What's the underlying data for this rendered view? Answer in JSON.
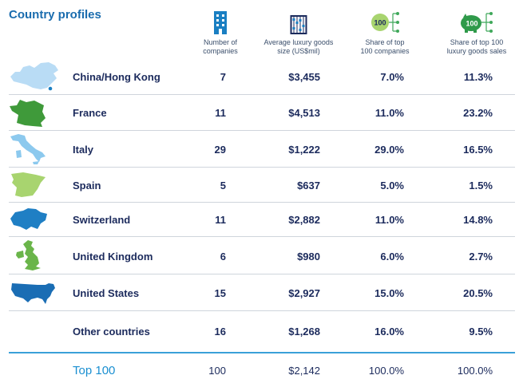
{
  "title": "Country profiles",
  "headers": {
    "num_companies": [
      "Number of",
      "companies"
    ],
    "avg_size": [
      "Average luxury goods",
      "size (US$mil)"
    ],
    "share_companies": [
      "Share of top",
      "100 companies"
    ],
    "share_sales": [
      "Share of top 100",
      "luxury goods sales"
    ],
    "badge_companies": "100",
    "badge_sales": "100"
  },
  "icons": {
    "num_companies": "building-icon",
    "avg_size": "abacus-icon",
    "share_companies": "coin-network-icon",
    "share_sales": "piggy-bank-network-icon"
  },
  "colors": {
    "title": "#1a6cae",
    "china": "#b9dcf5",
    "france": "#3f9a3a",
    "italy": "#8cc9ee",
    "spain": "#a8d46f",
    "switzerland": "#1f7fc4",
    "uk": "#6ab54a",
    "usa": "#1a6db4",
    "total_text": "#1a8fd1",
    "total_rule": "#3aa0d8"
  },
  "rows": [
    {
      "country": "China/Hong Kong",
      "map": "china-map-icon",
      "companies": "7",
      "avg": "$3,455",
      "share_companies": "7.0%",
      "share_sales": "11.3%"
    },
    {
      "country": "France",
      "map": "france-map-icon",
      "companies": "11",
      "avg": "$4,513",
      "share_companies": "11.0%",
      "share_sales": "23.2%"
    },
    {
      "country": "Italy",
      "map": "italy-map-icon",
      "companies": "29",
      "avg": "$1,222",
      "share_companies": "29.0%",
      "share_sales": "16.5%"
    },
    {
      "country": "Spain",
      "map": "spain-map-icon",
      "companies": "5",
      "avg": "$637",
      "share_companies": "5.0%",
      "share_sales": "1.5%"
    },
    {
      "country": "Switzerland",
      "map": "switzerland-map-icon",
      "companies": "11",
      "avg": "$2,882",
      "share_companies": "11.0%",
      "share_sales": "14.8%"
    },
    {
      "country": "United Kingdom",
      "map": "uk-map-icon",
      "companies": "6",
      "avg": "$980",
      "share_companies": "6.0%",
      "share_sales": "2.7%"
    },
    {
      "country": "United States",
      "map": "usa-map-icon",
      "companies": "15",
      "avg": "$2,927",
      "share_companies": "15.0%",
      "share_sales": "20.5%"
    },
    {
      "country": "Other countries",
      "map": "",
      "companies": "16",
      "avg": "$1,268",
      "share_companies": "16.0%",
      "share_sales": "9.5%"
    }
  ],
  "total": {
    "country": "Top 100",
    "companies": "100",
    "avg": "$2,142",
    "share_companies": "100.0%",
    "share_sales": "100.0%"
  }
}
